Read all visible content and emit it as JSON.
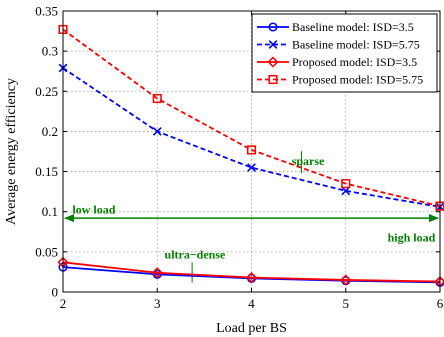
{
  "chart_data": {
    "type": "line",
    "title": "",
    "xlabel": "Load per BS",
    "ylabel": "Average energy efficiency",
    "xlim": [
      2,
      6
    ],
    "ylim": [
      0,
      0.35
    ],
    "x_ticks": [
      "2",
      "3",
      "4",
      "5",
      "6"
    ],
    "y_ticks": [
      "0",
      "0.05",
      "0.1",
      "0.15",
      "0.2",
      "0.25",
      "0.3",
      "0.35"
    ],
    "grid": true,
    "legend_position": "top-right",
    "x": [
      2,
      3,
      4,
      5,
      6
    ],
    "series": [
      {
        "name": "Baseline model: ISD=3.5",
        "values": [
          0.031,
          0.022,
          0.017,
          0.014,
          0.012
        ],
        "color": "#0000ff",
        "line": "solid",
        "marker": "circle"
      },
      {
        "name": "Baseline model: ISD=5.75",
        "values": [
          0.279,
          0.2,
          0.155,
          0.126,
          0.106
        ],
        "color": "#0000ff",
        "line": "dashed",
        "marker": "x"
      },
      {
        "name": "Proposed model: ISD=3.5",
        "values": [
          0.037,
          0.024,
          0.018,
          0.015,
          0.013
        ],
        "color": "#ff0000",
        "line": "solid",
        "marker": "diamond"
      },
      {
        "name": "Proposed model: ISD=5.75",
        "values": [
          0.327,
          0.241,
          0.177,
          0.135,
          0.107
        ],
        "color": "#ff0000",
        "line": "dashed",
        "marker": "square"
      }
    ],
    "annotations": [
      {
        "text": "sparse",
        "x": 4.6,
        "y": 0.163,
        "color": "#008000"
      },
      {
        "text": "ultra−dense",
        "x": 3.4,
        "y": 0.047,
        "color": "#008000"
      },
      {
        "text": "low load",
        "x": 2.1,
        "y": 0.103,
        "color": "#008000"
      },
      {
        "text": "high load",
        "x": 5.95,
        "y": 0.068,
        "color": "#008000"
      }
    ],
    "load_arrow": {
      "y": 0.092,
      "from": 2,
      "to": 6,
      "color": "#008000"
    }
  }
}
